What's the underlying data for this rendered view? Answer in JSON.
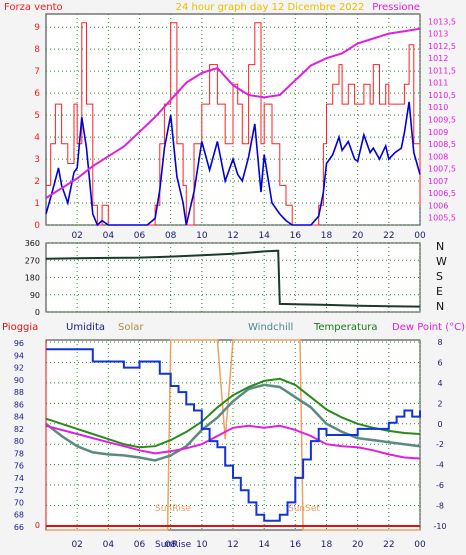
{
  "header": {
    "left": "Forza vento",
    "center": "24 hour graph day   12 Dicembre 2022",
    "right": "Pressione"
  },
  "dir_labels": [
    "N",
    "W",
    "S",
    "E",
    "N"
  ],
  "bottom_header": {
    "pioggia": "Pioggia",
    "umidita": "Umidita",
    "solar": "Solar",
    "windchill": "Windchill",
    "temperatura": "Temperatura",
    "dewpoint": "Dew Point (°C)"
  },
  "annotations": {
    "sunrise": "SunRise",
    "sunset": "SunSet"
  },
  "colors": {
    "wind_gust": "#ff2020",
    "wind_speed": "#0000dd",
    "pressure": "#e020e0",
    "direction": "#1a3a2a",
    "humidity": "#1133dd",
    "solar": "#f0a060",
    "windchill": "#5a8a80",
    "temperature": "#2a8a1a",
    "dewpoint": "#e020e0",
    "rain": "#e01010",
    "grid": "#2a8a2a"
  },
  "chart_data": [
    {
      "type": "line",
      "title": "24 hour graph day   12 Dicembre 2022",
      "x_ticks": [
        "02",
        "04",
        "06",
        "08",
        "10",
        "12",
        "14",
        "16",
        "18",
        "20",
        "22",
        "00"
      ],
      "y_left_label": "Forza vento",
      "y_left_ticks": [
        0,
        1,
        2,
        3,
        4,
        5,
        6,
        7,
        8,
        9
      ],
      "y_left_lim": [
        0,
        9.6
      ],
      "y_right_label": "Pressione",
      "y_right_ticks": [
        "1005,5",
        "1006",
        "1006,5",
        "1007",
        "1007,5",
        "1008",
        "1008,5",
        "1009",
        "1009,5",
        "1010",
        "1010,5",
        "1011",
        "1011,5",
        "1012",
        "1012,5",
        "1013",
        "1013,5"
      ],
      "y_right_lim": [
        1005.2,
        1013.8
      ],
      "series": [
        {
          "name": "gust",
          "x": [
            0,
            0.3,
            0.6,
            1,
            1.4,
            1.8,
            2,
            2.3,
            2.6,
            3,
            3.3,
            3.6,
            4,
            4.5,
            5,
            5.5,
            6,
            6.5,
            7,
            7.3,
            7.6,
            8,
            8.4,
            8.8,
            9,
            9.5,
            10,
            10.5,
            11,
            11.5,
            12,
            12.3,
            12.6,
            13,
            13.4,
            13.8,
            14,
            14.5,
            15,
            15.4,
            15.8,
            16,
            16.5,
            17,
            17.5,
            17.8,
            18,
            18.4,
            18.8,
            19,
            19.4,
            19.8,
            20,
            20.4,
            20.8,
            21,
            21.4,
            21.8,
            22,
            22.4,
            22.8,
            23,
            23.3,
            23.6,
            24
          ],
          "y": [
            1.8,
            3.7,
            5.5,
            3.7,
            2.8,
            5.5,
            3.7,
            9.2,
            5.5,
            0.9,
            0,
            0.9,
            0,
            0,
            0,
            0,
            0,
            0,
            0.9,
            3.7,
            5.5,
            9.2,
            3.7,
            1.8,
            0,
            3.7,
            5.5,
            7.3,
            5.5,
            3.7,
            6.4,
            5.5,
            3.7,
            7.3,
            9.2,
            3.7,
            5.5,
            3.7,
            1.8,
            0.9,
            0,
            0,
            0,
            0,
            0.9,
            3.7,
            5.5,
            6.4,
            7.3,
            5.5,
            6.4,
            5.5,
            5.5,
            6.4,
            5.5,
            7.3,
            5.5,
            6.4,
            5.5,
            5.5,
            5.5,
            6.4,
            8.2,
            3.7,
            0.9
          ]
        },
        {
          "name": "speed",
          "x": [
            0,
            0.4,
            0.8,
            1,
            1.4,
            1.8,
            2,
            2.3,
            2.6,
            3,
            3.3,
            3.6,
            4,
            4.5,
            5,
            5.5,
            6,
            6.5,
            7,
            7.3,
            7.6,
            8,
            8.4,
            8.8,
            9,
            9.5,
            10,
            10.5,
            11,
            11.5,
            12,
            12.3,
            12.6,
            13,
            13.4,
            13.8,
            14,
            14.5,
            15,
            15.4,
            15.8,
            16,
            16.5,
            17,
            17.5,
            17.8,
            18,
            18.4,
            18.8,
            19,
            19.4,
            19.8,
            20,
            20.4,
            20.8,
            21,
            21.4,
            21.8,
            22,
            22.4,
            22.8,
            23,
            23.3,
            23.6,
            24
          ],
          "y": [
            0.5,
            1.5,
            2.6,
            1.8,
            1,
            2.4,
            2.6,
            4.9,
            3.5,
            0.5,
            0,
            0.2,
            0,
            0,
            0,
            0,
            0,
            0,
            0.3,
            1.6,
            3.5,
            5.0,
            2.2,
            1,
            0,
            1.5,
            3.8,
            2.5,
            3.8,
            2.0,
            3.0,
            2.3,
            2.0,
            3.1,
            4.6,
            1.5,
            3.2,
            1.0,
            0.5,
            0.2,
            0,
            0,
            0,
            0,
            0.4,
            1.5,
            2.8,
            3.2,
            4.0,
            3.4,
            3.8,
            3.0,
            2.9,
            4.1,
            3.3,
            3.5,
            3.0,
            3.6,
            3.0,
            3.3,
            3.5,
            4.2,
            5.6,
            3.3,
            2.3
          ]
        },
        {
          "name": "pressure",
          "x": [
            0,
            1,
            2,
            3,
            4,
            5,
            6,
            7,
            8,
            9,
            10,
            11,
            12,
            13,
            14,
            15,
            16,
            17,
            18,
            19,
            20,
            21,
            22,
            23,
            24
          ],
          "y": [
            1006.3,
            1006.7,
            1007.1,
            1007.6,
            1008.0,
            1008.4,
            1009.0,
            1009.6,
            1010.3,
            1011.0,
            1011.4,
            1011.6,
            1010.9,
            1010.5,
            1010.4,
            1010.5,
            1011.1,
            1011.7,
            1012.0,
            1012.2,
            1012.6,
            1012.8,
            1013.0,
            1013.1,
            1013.2
          ]
        }
      ]
    },
    {
      "type": "line",
      "y_ticks": [
        "360",
        "270",
        "180",
        "90",
        "0"
      ],
      "y_lim": [
        0,
        360
      ],
      "series": [
        {
          "name": "direction",
          "x": [
            0,
            2,
            4,
            6,
            8,
            10,
            12,
            13,
            14,
            14.9,
            15,
            16,
            18,
            20,
            22,
            24
          ],
          "y": [
            278,
            280,
            282,
            284,
            289,
            296,
            304,
            310,
            316,
            320,
            42,
            40,
            37,
            33,
            30,
            28
          ]
        }
      ]
    },
    {
      "type": "line",
      "x_ticks": [
        "02",
        "04",
        "06",
        "08",
        "10",
        "12",
        "14",
        "16",
        "18",
        "20",
        "22",
        "00"
      ],
      "y_left_ticks": [
        66,
        68,
        70,
        72,
        74,
        76,
        78,
        80,
        82,
        84,
        86,
        88,
        90,
        92,
        94,
        96
      ],
      "y_left_lim": [
        65.5,
        96.5
      ],
      "y_right_ticks": [
        -10,
        -8,
        -6,
        -4,
        -2,
        0,
        2,
        4,
        6,
        8
      ],
      "y_right_lim": [
        -10.4,
        8.2
      ],
      "series": [
        {
          "name": "Umidita",
          "x": [
            0,
            2.5,
            3,
            4,
            5,
            6,
            7,
            7.3,
            8,
            8.5,
            9,
            9.5,
            10,
            10.5,
            11,
            11.5,
            12,
            12.5,
            13,
            13.5,
            14,
            14.3,
            14.7,
            15,
            15.5,
            16,
            16.5,
            17,
            17.5,
            18,
            19,
            20,
            21,
            22,
            22.5,
            23,
            23.5,
            24
          ],
          "y": [
            95,
            95,
            93,
            93,
            92,
            93,
            93,
            91,
            89,
            88,
            86,
            85,
            82,
            80,
            79,
            76,
            74,
            72,
            70,
            68,
            67,
            67,
            67,
            68,
            70,
            74,
            77,
            80,
            82,
            81,
            81,
            82,
            82,
            83,
            84,
            85,
            84,
            85
          ]
        },
        {
          "name": "Temperatura",
          "x": [
            0,
            1,
            2,
            3,
            4,
            5,
            6,
            7,
            8,
            9,
            10,
            11,
            12,
            13,
            14,
            15,
            16,
            17,
            18,
            19,
            20,
            21,
            22,
            23,
            24
          ],
          "y": [
            0.5,
            0,
            -0.5,
            -1,
            -1.5,
            -2,
            -2.3,
            -2.2,
            -1.6,
            -0.8,
            0.2,
            1.6,
            2.8,
            3.6,
            4.2,
            4.4,
            3.8,
            2.6,
            1.4,
            0.6,
            0,
            -0.4,
            -0.7,
            -0.9,
            -1
          ]
        },
        {
          "name": "Windchill",
          "x": [
            0,
            1,
            2,
            3,
            4,
            5,
            6,
            7,
            8,
            9,
            10,
            11,
            12,
            13,
            14,
            15,
            16,
            17,
            18,
            19,
            20,
            21,
            22,
            23,
            24
          ],
          "y": [
            0,
            -1.2,
            -2.2,
            -2.8,
            -3,
            -3.1,
            -3.3,
            -3.6,
            -3.1,
            -2.2,
            -0.6,
            0.6,
            2.2,
            3.4,
            3.8,
            3.6,
            2.6,
            1.6,
            0,
            -0.8,
            -1.4,
            -1.6,
            -1.8,
            -2,
            -2.2
          ]
        },
        {
          "name": "Dew Point",
          "x": [
            0,
            1,
            2,
            3,
            4,
            5,
            6,
            7,
            8,
            9,
            10,
            11,
            12,
            13,
            14,
            15,
            16,
            17,
            18,
            19,
            20,
            21,
            22,
            23,
            24
          ],
          "y": [
            -0.2,
            -0.6,
            -1.0,
            -1.4,
            -1.8,
            -2.2,
            -2.6,
            -2.9,
            -2.7,
            -2.4,
            -2.0,
            -1.2,
            -0.4,
            -0.2,
            -0.4,
            -0.2,
            -0.6,
            -1.2,
            -2.0,
            -2.2,
            -2.3,
            -2.6,
            -3.0,
            -3.3,
            -3.4
          ]
        },
        {
          "name": "Solar",
          "x": [
            0,
            7.8,
            8,
            8.6,
            9,
            9.5,
            10,
            10.5,
            11,
            11.5,
            12,
            12.5,
            13,
            13.5,
            14,
            14.5,
            15,
            15.5,
            16,
            16.3,
            16.5,
            24
          ],
          "y": [
            -10.4,
            -10.4,
            8.2,
            8.2,
            8.2,
            8.2,
            8.2,
            8.2,
            8.2,
            -1.5,
            8.2,
            8.2,
            8.2,
            8.2,
            8.2,
            8.2,
            8.2,
            8.2,
            8.2,
            8.2,
            -10.4,
            -10.4
          ]
        },
        {
          "name": "Pioggia",
          "x": [
            0,
            24
          ],
          "y": [
            0,
            0
          ]
        }
      ]
    }
  ]
}
